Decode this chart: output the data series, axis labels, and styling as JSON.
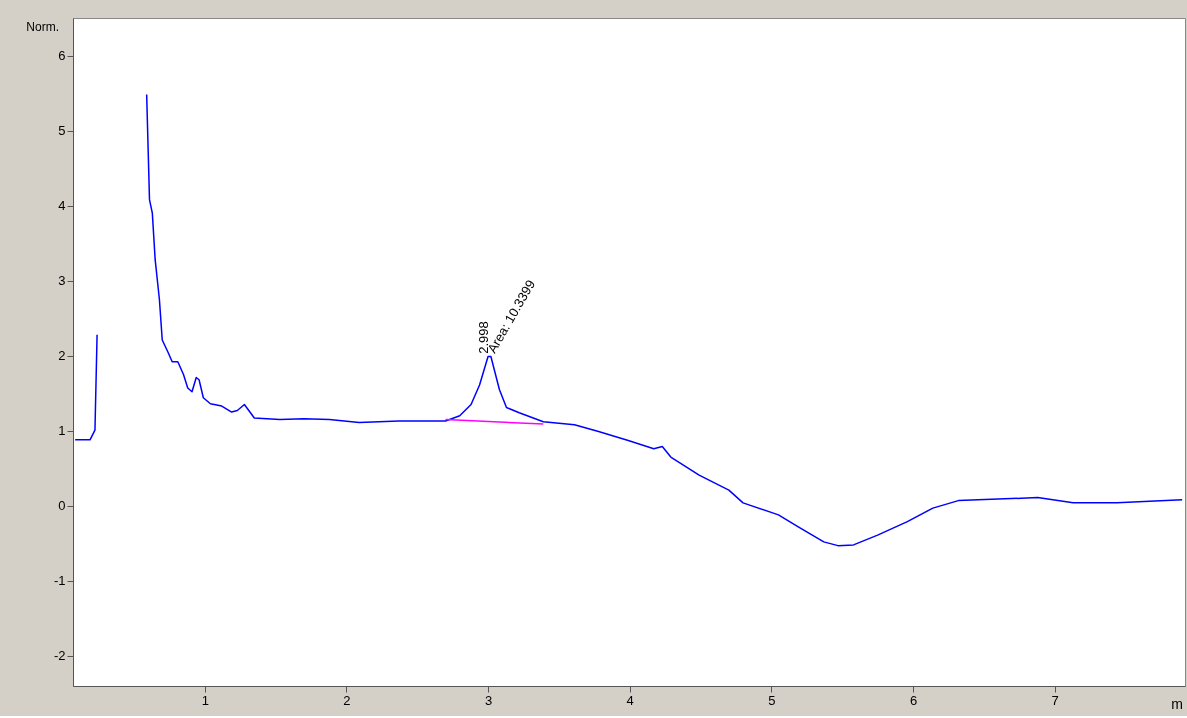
{
  "chart_data": {
    "type": "line",
    "xlabel": "m",
    "ylabel": "Norm.",
    "series": [
      {
        "type": "line",
        "color": "#0000ff",
        "x": [
          0.085,
          0.19,
          0.225,
          0.24,
          0.25,
          0.58,
          0.59,
          0.61,
          0.63,
          0.65,
          0.68,
          0.7,
          0.74,
          0.77,
          0.81,
          0.85,
          0.88,
          0.91,
          0.94,
          0.96,
          0.99,
          1.04,
          1.12,
          1.19,
          1.23,
          1.28,
          1.35,
          1.53,
          1.7,
          1.88,
          2.09,
          2.37,
          2.7,
          2.8,
          2.88,
          2.94,
          3.0,
          3.02,
          3.08,
          3.13,
          3.22,
          3.39,
          3.61,
          3.78,
          3.99,
          4.17,
          4.23,
          4.29,
          4.49,
          4.7,
          4.8,
          5.05,
          5.19,
          5.37,
          5.47,
          5.58,
          5.75,
          5.96,
          6.14,
          6.32,
          6.6,
          6.88,
          7.13,
          7.44,
          7.9
        ],
        "values": [
          0.88,
          0.88,
          1.01,
          2.28,
          null,
          null,
          5.48,
          4.08,
          3.9,
          3.28,
          2.75,
          2.21,
          2.05,
          1.92,
          1.92,
          1.75,
          1.57,
          1.52,
          1.71,
          1.68,
          1.44,
          1.36,
          1.33,
          1.25,
          1.27,
          1.35,
          1.17,
          1.15,
          1.16,
          1.15,
          1.11,
          1.13,
          1.13,
          1.2,
          1.35,
          1.61,
          1.99,
          1.99,
          1.55,
          1.31,
          1.24,
          1.12,
          1.08,
          0.99,
          0.87,
          0.76,
          0.79,
          0.65,
          0.41,
          0.21,
          0.04,
          -0.12,
          -0.28,
          -0.48,
          -0.53,
          -0.52,
          -0.39,
          -0.21,
          -0.03,
          0.07,
          0.09,
          0.11,
          0.04,
          0.04,
          0.08
        ]
      },
      {
        "type": "line",
        "color": "#ff00ff",
        "x": [
          2.7,
          3.39
        ],
        "values": [
          1.15,
          1.09
        ]
      }
    ],
    "annotations": [
      {
        "text": "2.998",
        "x": 2.998,
        "y": 2.0
      },
      {
        "text": "Area: 10.3399",
        "x": 3.04,
        "y": 2.0
      }
    ],
    "xlim": [
      0.07,
      7.92
    ],
    "xticks": [
      1,
      2,
      3,
      4,
      5,
      6,
      7
    ],
    "ylim": [
      -2.4,
      6.5
    ],
    "yticks": [
      -2,
      -1,
      0,
      1,
      2,
      3,
      4,
      5,
      6
    ],
    "grid": false,
    "marker": "none",
    "line_style": "solid"
  }
}
